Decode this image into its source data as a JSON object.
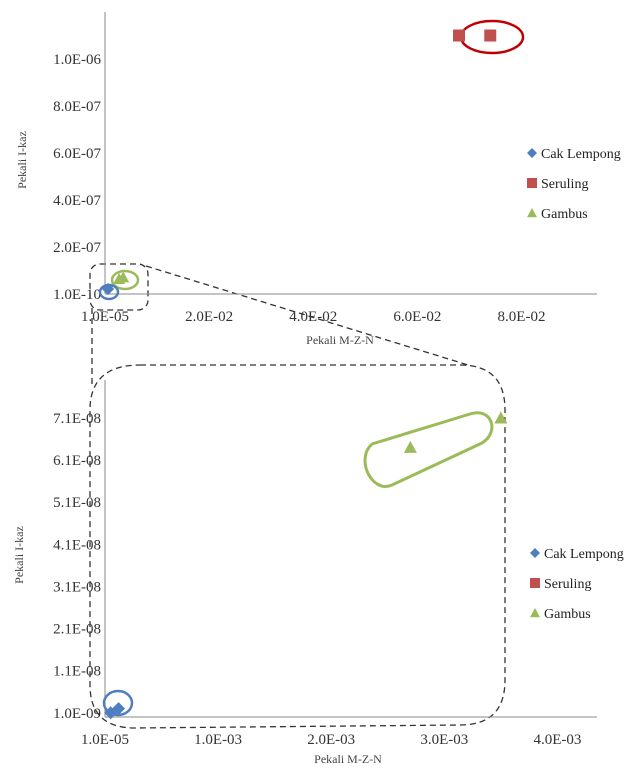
{
  "chart_data": [
    {
      "type": "scatter",
      "xlabel": "Pekali M-Z-N",
      "ylabel": "Pekali I-kaz",
      "x_ticks": [
        {
          "value": 0,
          "label": "1.0E-05"
        },
        {
          "value": 0.02,
          "label": "2.0E-02"
        },
        {
          "value": 0.04,
          "label": "4.0E-02"
        },
        {
          "value": 0.06,
          "label": "6.0E-02"
        },
        {
          "value": 0.08,
          "label": "8.0E-02"
        }
      ],
      "y_ticks": [
        {
          "value": 0,
          "label": "1.0E-10"
        },
        {
          "value": 2e-07,
          "label": "2.0E-07"
        },
        {
          "value": 4e-07,
          "label": "4.0E-07"
        },
        {
          "value": 6e-07,
          "label": "6.0E-07"
        },
        {
          "value": 8e-07,
          "label": "8.0E-07"
        },
        {
          "value": 1e-06,
          "label": "1.0E-06"
        }
      ],
      "xlim": [
        0,
        0.0945
      ],
      "ylim": [
        0,
        1.2e-06
      ],
      "grid": false,
      "legend_position": "right",
      "series": [
        {
          "name": "Cak Lempong",
          "marker": "diamond",
          "color": "#4f7ec0",
          "points": [
            {
              "x": 0.0001,
              "y": 1e-10
            },
            {
              "x": 0.0004,
              "y": 2e-09
            }
          ]
        },
        {
          "name": "Seruling",
          "marker": "square",
          "color": "#c0504d",
          "points": [
            {
              "x": 0.068,
              "y": 1.1e-06
            },
            {
              "x": 0.074,
              "y": 1.1e-06
            }
          ]
        },
        {
          "name": "Gambus",
          "marker": "triangle",
          "color": "#9bbb59",
          "points": [
            {
              "x": 0.0027,
              "y": 6.4e-08
            },
            {
              "x": 0.0035,
              "y": 7.1e-08
            }
          ]
        }
      ],
      "annotations": [
        {
          "type": "ellipse",
          "color": "#c00000",
          "around": "Seruling"
        },
        {
          "type": "ellipse",
          "color": "#9bbb59",
          "around": "Gambus"
        },
        {
          "type": "ellipse",
          "color": "#4f7ec0",
          "around": "Cak Lempong"
        },
        {
          "type": "zoom-box",
          "style": "dashed",
          "leads_to": "zoomed chart below"
        }
      ]
    },
    {
      "type": "scatter",
      "xlabel": "Pekali M-Z-N",
      "ylabel": "Pekali I-kaz",
      "x_ticks": [
        {
          "value": 0,
          "label": "1.0E-05"
        },
        {
          "value": 0.001,
          "label": "1.0E-03"
        },
        {
          "value": 0.002,
          "label": "2.0E-03"
        },
        {
          "value": 0.003,
          "label": "3.0E-03"
        },
        {
          "value": 0.004,
          "label": "4.0E-03"
        }
      ],
      "y_ticks": [
        {
          "value": 1e-09,
          "label": "1.0E-09"
        },
        {
          "value": 1.1e-08,
          "label": "1.1E-08"
        },
        {
          "value": 2.1e-08,
          "label": "2.1E-08"
        },
        {
          "value": 3.1e-08,
          "label": "3.1E-08"
        },
        {
          "value": 4.1e-08,
          "label": "4.1E-08"
        },
        {
          "value": 5.1e-08,
          "label": "5.1E-08"
        },
        {
          "value": 6.1e-08,
          "label": "6.1E-08"
        },
        {
          "value": 7.1e-08,
          "label": "7.1E-08"
        }
      ],
      "xlim": [
        0,
        0.00435
      ],
      "ylim": [
        0,
        8e-08
      ],
      "grid": false,
      "legend_position": "right",
      "series": [
        {
          "name": "Cak Lempong",
          "marker": "diamond",
          "color": "#4f7ec0",
          "points": [
            {
              "x": 5e-05,
              "y": 1e-09
            },
            {
              "x": 0.00012,
              "y": 2e-09
            }
          ]
        },
        {
          "name": "Seruling",
          "marker": "square",
          "color": "#c0504d",
          "points": []
        },
        {
          "name": "Gambus",
          "marker": "triangle",
          "color": "#9bbb59",
          "points": [
            {
              "x": 0.0027,
              "y": 6.4e-08
            },
            {
              "x": 0.0035,
              "y": 7.1e-08
            }
          ]
        }
      ],
      "annotations": [
        {
          "type": "ellipse",
          "color": "#9bbb59",
          "around": "Gambus"
        },
        {
          "type": "ellipse",
          "color": "#4f7ec0",
          "around": "Cak Lempong"
        }
      ]
    }
  ]
}
